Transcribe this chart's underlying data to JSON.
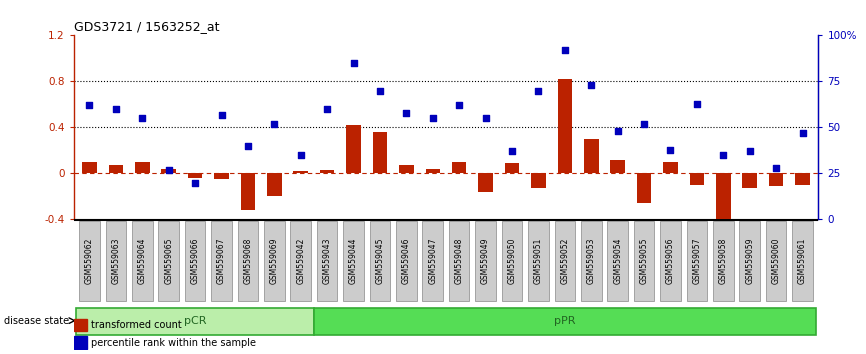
{
  "title": "GDS3721 / 1563252_at",
  "samples": [
    "GSM559062",
    "GSM559063",
    "GSM559064",
    "GSM559065",
    "GSM559066",
    "GSM559067",
    "GSM559068",
    "GSM559069",
    "GSM559042",
    "GSM559043",
    "GSM559044",
    "GSM559045",
    "GSM559046",
    "GSM559047",
    "GSM559048",
    "GSM559049",
    "GSM559050",
    "GSM559051",
    "GSM559052",
    "GSM559053",
    "GSM559054",
    "GSM559055",
    "GSM559056",
    "GSM559057",
    "GSM559058",
    "GSM559059",
    "GSM559060",
    "GSM559061"
  ],
  "transformed_count": [
    0.1,
    0.07,
    0.1,
    0.04,
    -0.04,
    -0.05,
    -0.32,
    -0.2,
    0.02,
    0.03,
    0.42,
    0.36,
    0.07,
    0.04,
    0.1,
    -0.16,
    0.09,
    -0.13,
    0.82,
    0.3,
    0.12,
    -0.26,
    0.1,
    -0.1,
    -0.44,
    -0.13,
    -0.11,
    -0.1
  ],
  "percentile_rank": [
    62,
    60,
    55,
    27,
    20,
    57,
    40,
    52,
    35,
    60,
    85,
    70,
    58,
    55,
    62,
    55,
    37,
    70,
    92,
    73,
    48,
    52,
    38,
    63,
    35,
    37,
    28,
    47
  ],
  "group_labels": [
    "pCR",
    "pPR"
  ],
  "group_boundaries": [
    0,
    9,
    28
  ],
  "pcr_color": "#BBEEAA",
  "ppr_color": "#55DD55",
  "group_edge_color": "#33AA33",
  "group_text_color": "#226622",
  "bar_color": "#BB2200",
  "dot_color": "#0000BB",
  "ylim_left": [
    -0.4,
    1.2
  ],
  "ylim_right": [
    0,
    100
  ],
  "hline_dotted_vals": [
    0.4,
    0.8
  ],
  "right_ticks": [
    0,
    25,
    50,
    75,
    100
  ],
  "right_tick_labels": [
    "0",
    "25",
    "50",
    "75",
    "100%"
  ],
  "left_ticks": [
    -0.4,
    0.0,
    0.4,
    0.8,
    1.2
  ],
  "left_tick_labels": [
    "-0.4",
    "0",
    "0.4",
    "0.8",
    "1.2"
  ]
}
